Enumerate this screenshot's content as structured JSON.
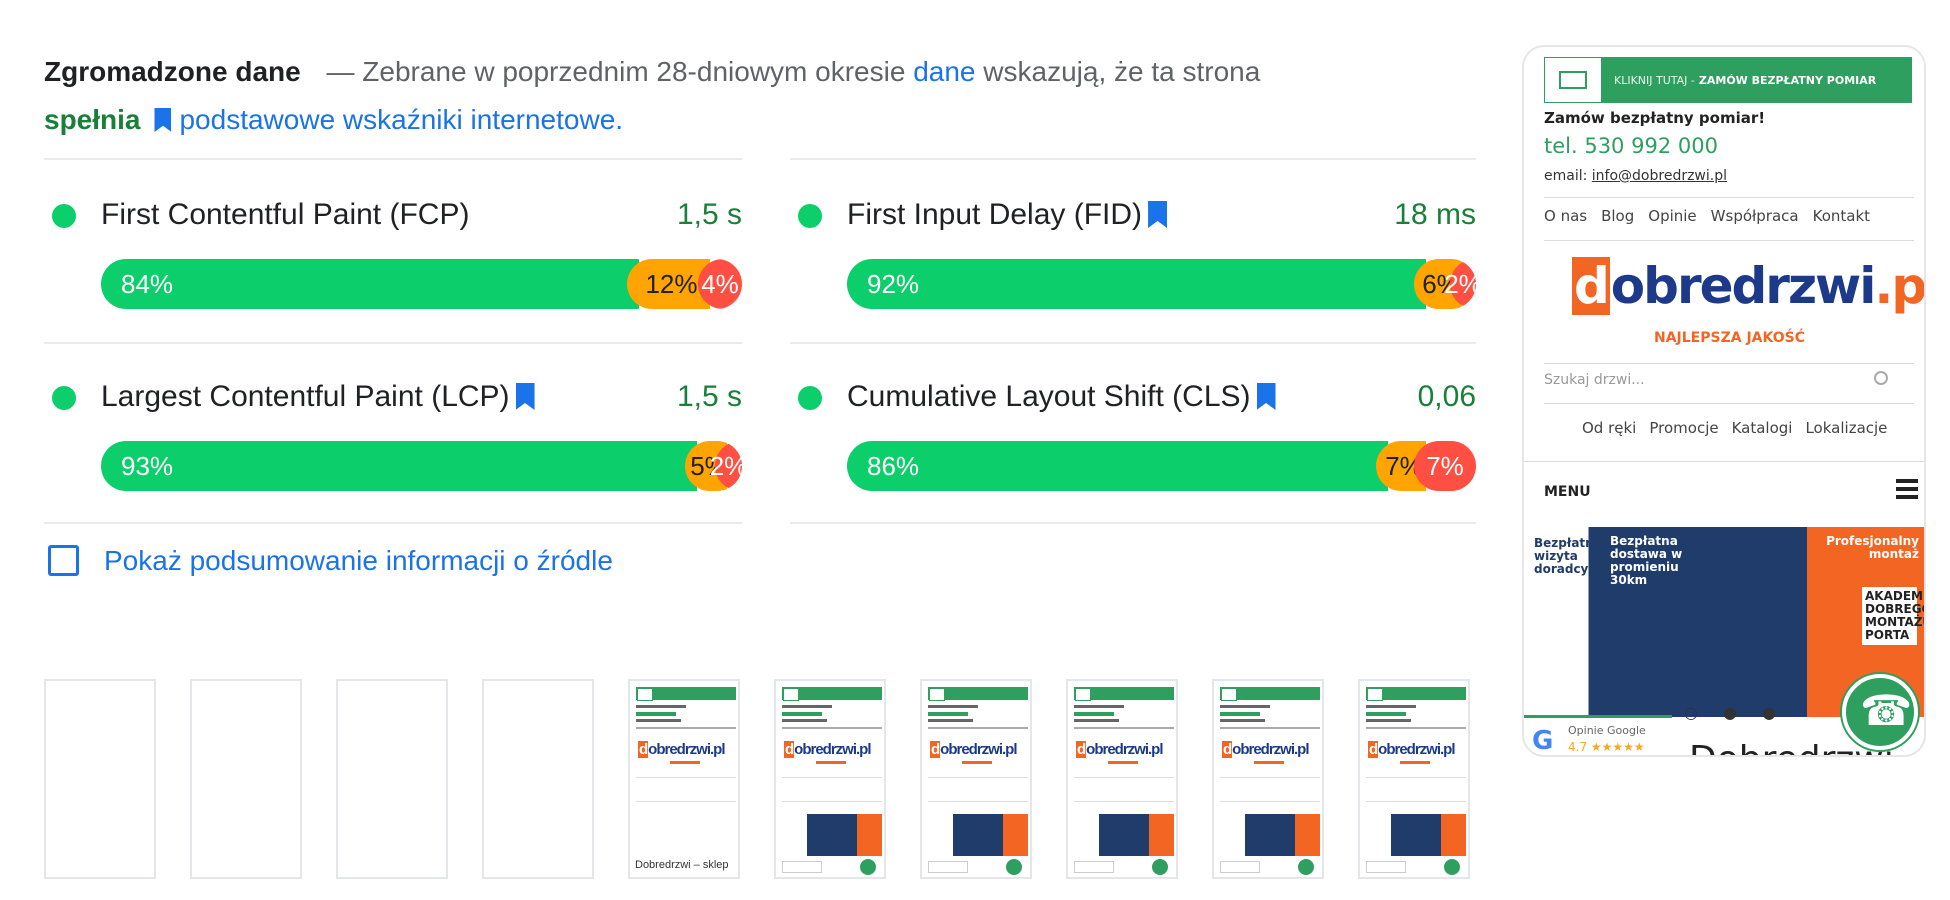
{
  "header": {
    "title": "Zgromadzone dane",
    "dash": "—",
    "text1": "Zebrane w poprzednim 28-dniowym okresie",
    "link_dane": "dane",
    "text2": "wskazują, że ta strona",
    "status": "spełnia",
    "link_cwv": "podstawowe wskaźniki internetowe",
    "period": "."
  },
  "metrics": [
    {
      "name": "First Contentful Paint (FCP)",
      "value": "1,5 s",
      "good": "84%",
      "avg": "12%",
      "poor": "4%",
      "good_pct": 84,
      "avg_pct": 12,
      "poor_pct": 4,
      "bookmark": false
    },
    {
      "name": "First Input Delay (FID)",
      "value": "18 ms",
      "good": "92%",
      "avg": "6%",
      "poor": "2%",
      "good_pct": 92,
      "avg_pct": 6,
      "poor_pct": 2,
      "bookmark": true
    },
    {
      "name": "Largest Contentful Paint (LCP)",
      "value": "1,5 s",
      "good": "93%",
      "avg": "5%",
      "poor": "2%",
      "good_pct": 93,
      "avg_pct": 5,
      "poor_pct": 2,
      "bookmark": true
    },
    {
      "name": "Cumulative Layout Shift (CLS)",
      "value": "0,06",
      "good": "86%",
      "avg": "7%",
      "poor": "7%",
      "good_pct": 86,
      "avg_pct": 7,
      "poor_pct": 7,
      "bookmark": true
    }
  ],
  "origin_summary": {
    "label": "Pokaż podsumowanie informacji o źródle",
    "checked": false
  },
  "filmstrip": {
    "blank_frames": 4,
    "frames": 6,
    "first_frame_caption": "Dobredrzwi – sklep"
  },
  "preview": {
    "banner_prefix": "KLIKNIJ TUTAJ -",
    "banner_cta": "ZAMÓW BEZPŁATNY POMIAR",
    "order_text": "Zamów bezpłatny pomiar!",
    "phone": "tel. 530 992 000",
    "email_label": "email:",
    "email": "info@dobredrzwi.pl",
    "nav": [
      "O nas",
      "Blog",
      "Opinie",
      "Współpraca",
      "Kontakt"
    ],
    "logo_d": "d",
    "logo_rest": "obredrzwi",
    "logo_tld": ".pl",
    "tagline": "NAJLEPSZA JAKOŚĆ",
    "search_placeholder": "Szukaj drzwi...",
    "nav2": [
      "Od ręki",
      "Promocje",
      "Katalogi",
      "Lokalizacje"
    ],
    "menu": "MENU",
    "banner_left": "Bezpłatna wizyta doradcy",
    "banner_mid": "Bezpłatna dostawa w promieniu 30km",
    "banner_right": "Profesjonalny montaż",
    "banner_badge": "AKADEMIA DOBREGO MONTAŻU PORTA",
    "dots": "○ ● ●",
    "google_label": "Opinie Google",
    "google_rating": "4.7 ★★★★★",
    "page_title_cut": "Dobredrzwi – sklep"
  },
  "colors": {
    "good": "#0cce6b",
    "average": "#ffa400",
    "poor": "#ff4e42",
    "link": "#1a73e8",
    "pass": "#188038"
  }
}
